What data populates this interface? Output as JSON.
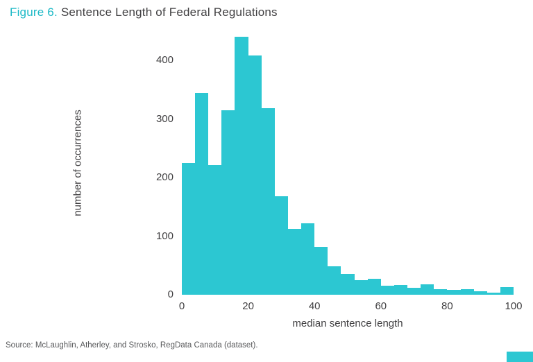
{
  "title": {
    "prefix": "Figure 6.",
    "rest": " Sentence Length of Federal Regulations"
  },
  "source": "Source: McLaughlin, Atherley, and Strosko, RegData Canada (dataset).",
  "colors": {
    "accent": "#1cb9c6",
    "bar": "#2cc7d2",
    "text_dark": "#414042",
    "text_gray": "#58595b"
  },
  "chart_data": {
    "type": "bar",
    "subtype": "histogram",
    "title": "Figure 6. Sentence Length of Federal Regulations",
    "xlabel": "median sentence length",
    "ylabel": "number of occurrences",
    "xlim": [
      0,
      100
    ],
    "ylim": [
      0,
      450
    ],
    "x_ticks": [
      0,
      20,
      40,
      60,
      80,
      100
    ],
    "y_ticks": [
      0,
      100,
      200,
      300,
      400
    ],
    "grid": false,
    "legend": false,
    "bin_width": 4,
    "bin_starts": [
      0,
      4,
      8,
      12,
      16,
      20,
      24,
      28,
      32,
      36,
      40,
      44,
      48,
      52,
      56,
      60,
      64,
      68,
      72,
      76,
      80,
      84,
      88,
      92,
      96
    ],
    "values": [
      225,
      345,
      222,
      315,
      440,
      408,
      318,
      168,
      112,
      122,
      82,
      48,
      35,
      25,
      27,
      15,
      17,
      12,
      18,
      10,
      8,
      10,
      6,
      4,
      13
    ]
  }
}
